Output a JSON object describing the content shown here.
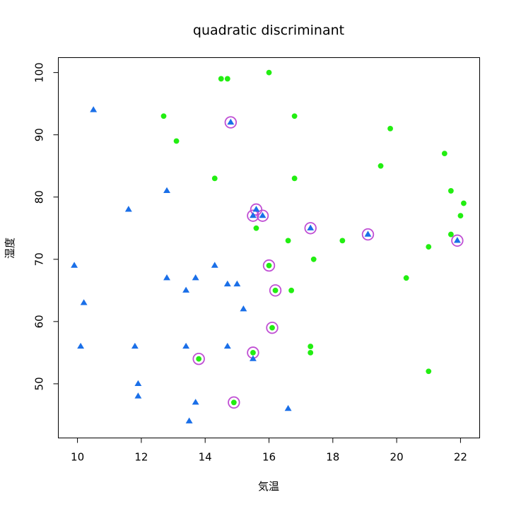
{
  "chart_data": {
    "type": "scatter",
    "title": "quadratic discriminant",
    "xlabel": "気温",
    "ylabel": "湿度",
    "xlim": [
      9.4,
      22.6
    ],
    "ylim": [
      41.3,
      102.4
    ],
    "x_ticks": [
      10,
      12,
      14,
      16,
      18,
      20,
      22
    ],
    "y_ticks": [
      50,
      60,
      70,
      80,
      90,
      100
    ],
    "grid": false,
    "colors": {
      "class_a": "#1a6fe8",
      "class_b": "#22ee11",
      "misclassified_ring": "#c04fd4"
    },
    "series": [
      {
        "marker": "triangle",
        "color": "#1a6fe8",
        "points": [
          [
            10.5,
            94
          ],
          [
            9.9,
            69
          ],
          [
            10.2,
            63
          ],
          [
            10.1,
            56
          ],
          [
            11.6,
            78
          ],
          [
            11.8,
            56
          ],
          [
            11.9,
            50
          ],
          [
            11.9,
            48
          ],
          [
            12.8,
            81
          ],
          [
            12.8,
            67
          ],
          [
            13.4,
            65
          ],
          [
            13.4,
            56
          ],
          [
            13.7,
            67
          ],
          [
            13.7,
            47
          ],
          [
            13.5,
            44
          ],
          [
            14.3,
            69
          ],
          [
            14.7,
            66
          ],
          [
            15.0,
            66
          ],
          [
            14.7,
            56
          ],
          [
            15.2,
            62
          ],
          [
            15.5,
            54
          ],
          [
            16.6,
            46
          ],
          [
            14.8,
            92
          ],
          [
            15.6,
            78
          ],
          [
            15.5,
            77
          ],
          [
            15.8,
            77
          ],
          [
            17.3,
            75
          ],
          [
            19.1,
            74
          ],
          [
            21.9,
            73
          ]
        ]
      },
      {
        "marker": "circle",
        "color": "#22ee11",
        "points": [
          [
            14.5,
            99
          ],
          [
            14.7,
            99
          ],
          [
            16.0,
            100
          ],
          [
            12.7,
            93
          ],
          [
            16.8,
            93
          ],
          [
            13.1,
            89
          ],
          [
            19.8,
            91
          ],
          [
            14.3,
            83
          ],
          [
            16.8,
            83
          ],
          [
            19.5,
            85
          ],
          [
            21.5,
            87
          ],
          [
            21.7,
            81
          ],
          [
            22.1,
            79
          ],
          [
            22.0,
            77
          ],
          [
            21.7,
            74
          ],
          [
            15.6,
            75
          ],
          [
            16.6,
            73
          ],
          [
            18.3,
            73
          ],
          [
            21.0,
            72
          ],
          [
            17.4,
            70
          ],
          [
            20.3,
            67
          ],
          [
            16.7,
            65
          ],
          [
            17.3,
            56
          ],
          [
            17.3,
            55
          ],
          [
            21.0,
            52
          ],
          [
            16.0,
            69
          ],
          [
            16.2,
            65
          ],
          [
            16.1,
            59
          ],
          [
            15.5,
            55
          ],
          [
            13.8,
            54
          ],
          [
            14.9,
            47
          ]
        ]
      }
    ],
    "misclassified": [
      [
        14.8,
        92
      ],
      [
        15.6,
        78
      ],
      [
        15.5,
        77
      ],
      [
        15.8,
        77
      ],
      [
        17.3,
        75
      ],
      [
        19.1,
        74
      ],
      [
        21.9,
        73
      ],
      [
        16.0,
        69
      ],
      [
        16.2,
        65
      ],
      [
        16.1,
        59
      ],
      [
        15.5,
        55
      ],
      [
        13.8,
        54
      ],
      [
        14.9,
        47
      ]
    ]
  }
}
